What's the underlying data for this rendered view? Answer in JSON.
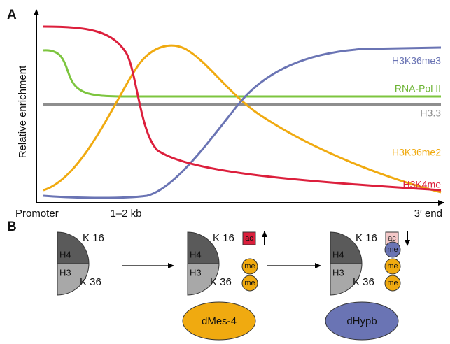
{
  "panel_a": {
    "label": "A",
    "y_axis_label": "Relative enrichment",
    "x_labels": [
      "Promoter",
      "1–2 kb",
      "3′ end"
    ],
    "curve_labels": [
      "H3K36me3",
      "RNA-Pol II",
      "H3.3",
      "H3K36me2",
      "H3K4me"
    ]
  },
  "panel_b": {
    "label": "B",
    "stages": [
      {
        "k16": "K 16",
        "h4": "H4",
        "h3": "H3",
        "k36": "K 36"
      },
      {
        "k16": "K 16",
        "h4": "H4",
        "h3": "H3",
        "k36": "K 36",
        "ac": "ac",
        "me": [
          "me",
          "me"
        ],
        "enzyme": "dMes-4"
      },
      {
        "k16": "K 16",
        "h4": "H4",
        "h3": "H3",
        "k36": "K 36",
        "ac": "ac",
        "me": [
          "me",
          "me",
          "me"
        ],
        "enzyme": "dHypb"
      }
    ]
  }
}
